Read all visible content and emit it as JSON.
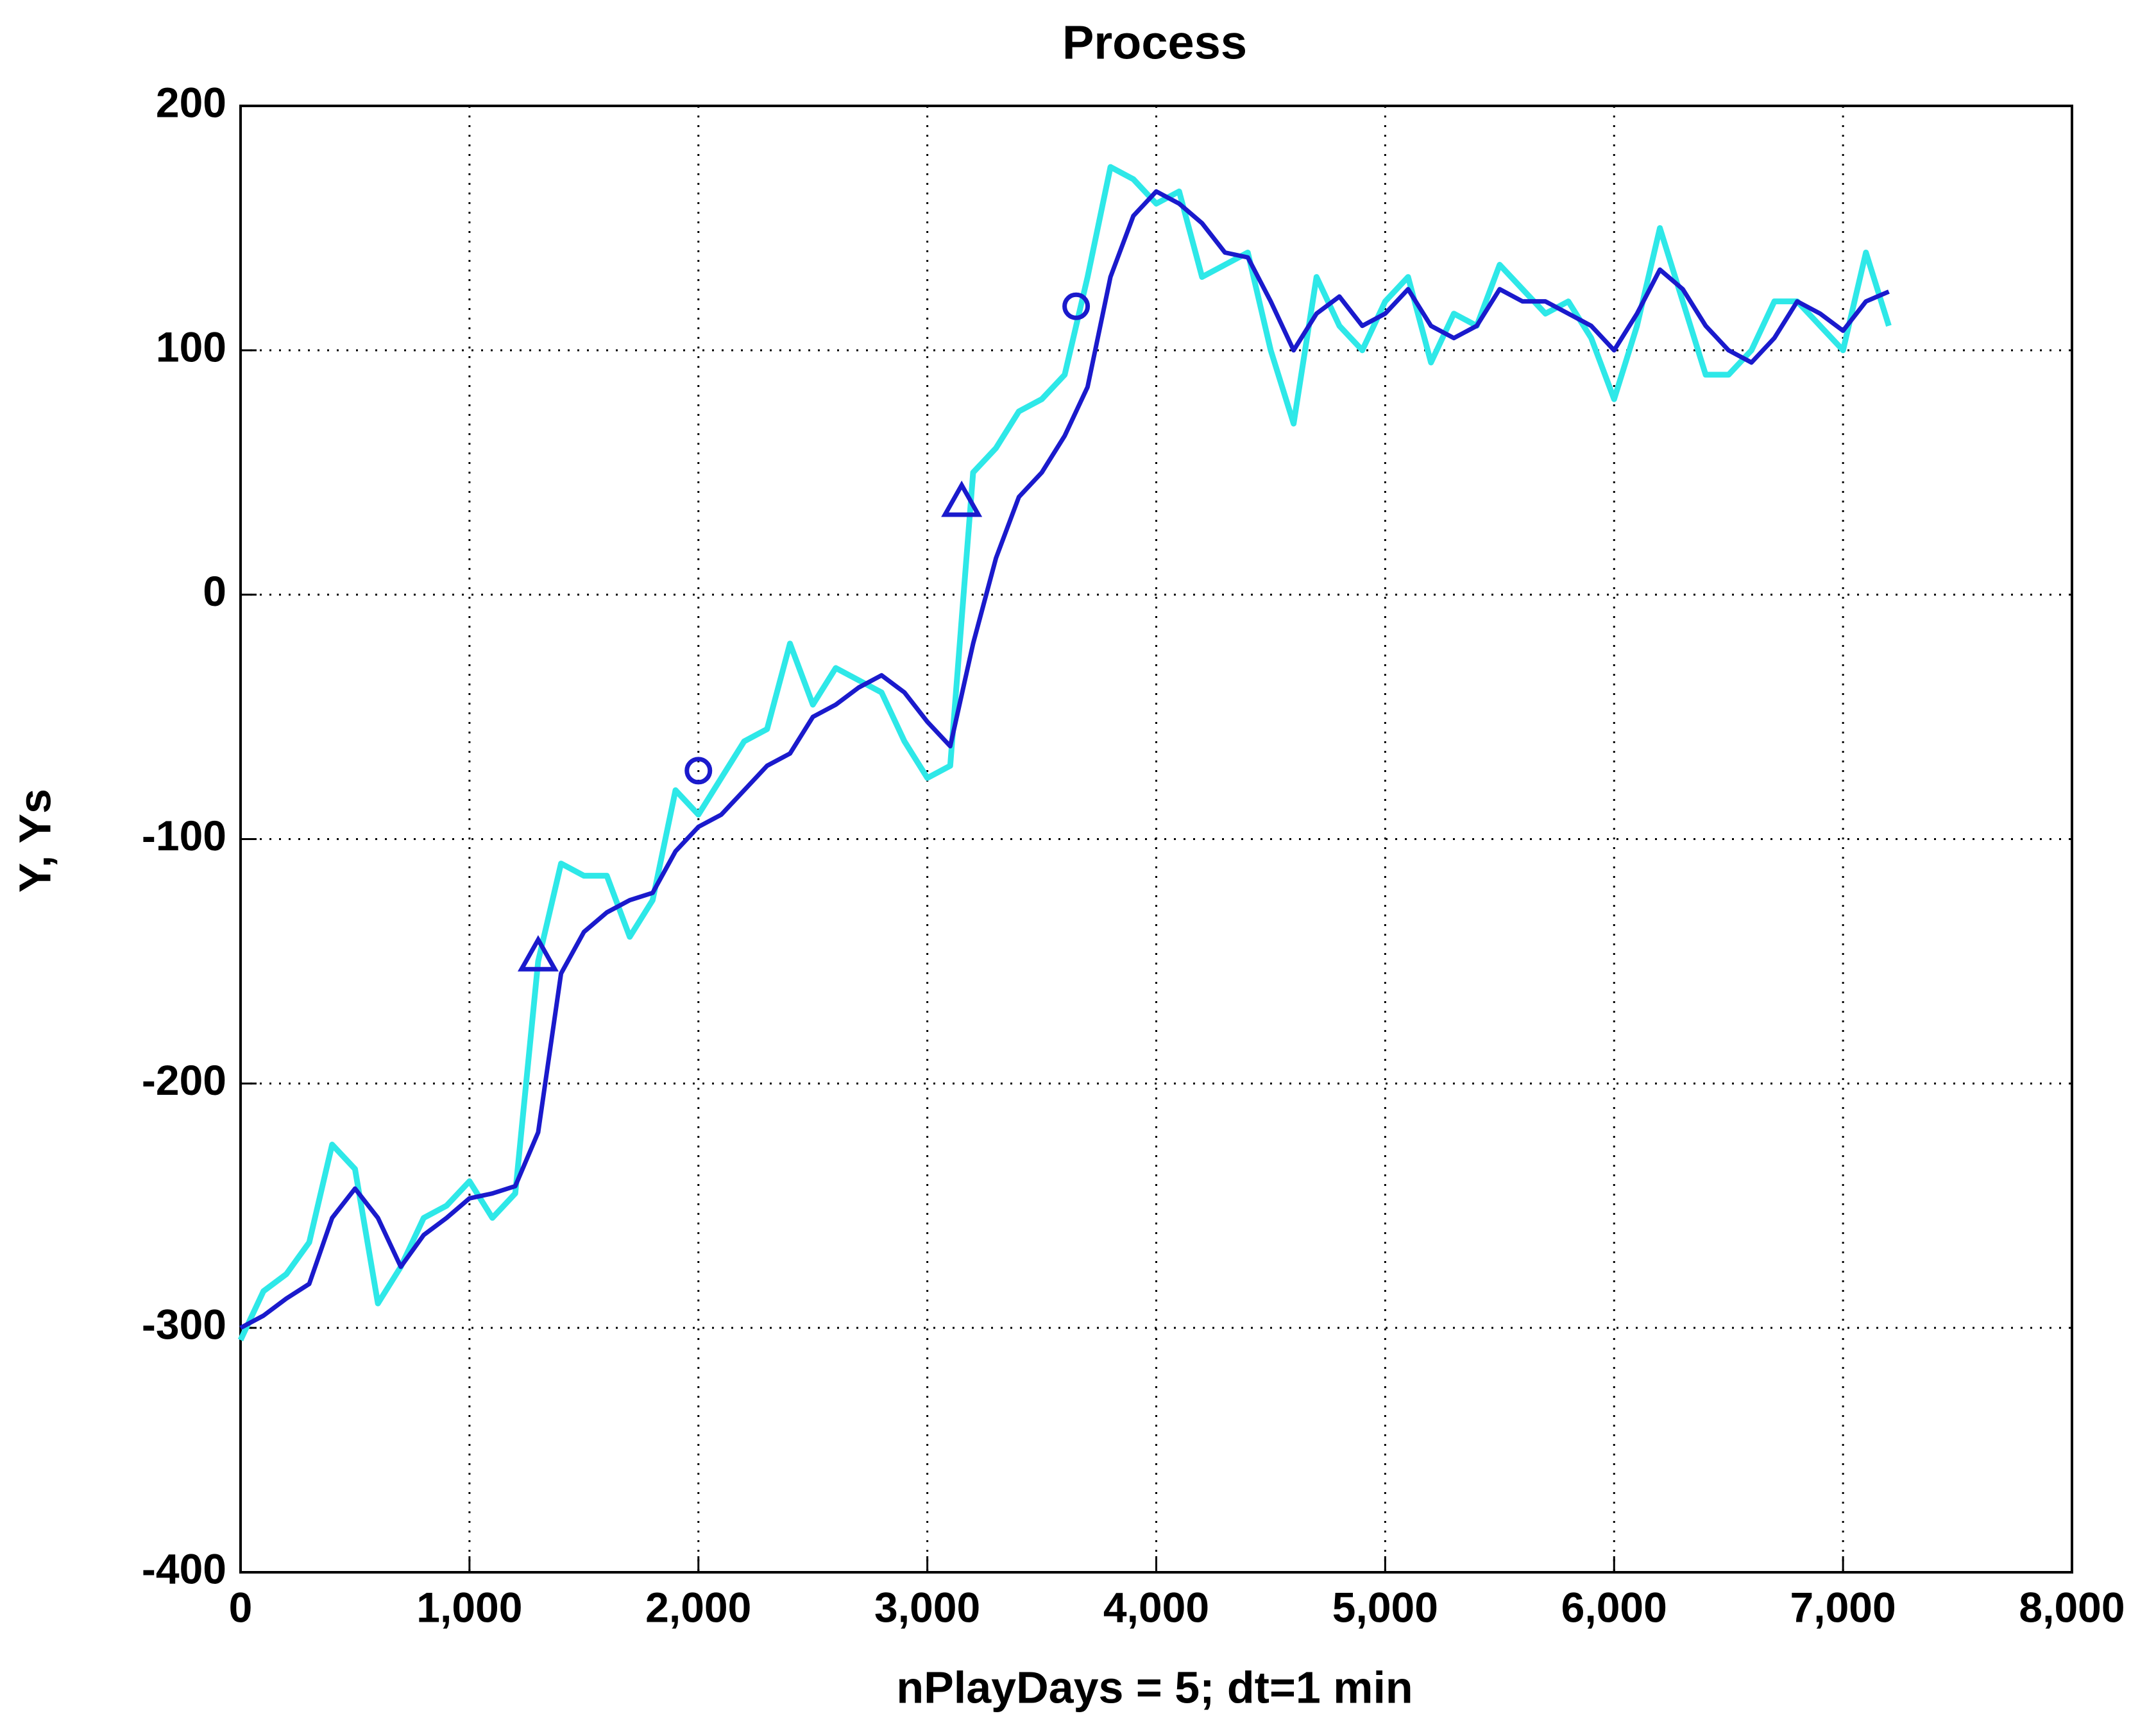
{
  "chart_data": {
    "type": "line",
    "title": "Process",
    "x_label": "nPlayDays = 5;    dt=1 min",
    "y_label": "Y,  Ys",
    "xlim": [
      0,
      8000
    ],
    "xticks": [
      0,
      {
        "value": 1000,
        "label": "1,000"
      },
      {
        "value": 2000,
        "label": "2,000"
      },
      {
        "value": 3000,
        "label": "3,000"
      },
      {
        "value": 4000,
        "label": "4,000"
      },
      {
        "value": 5000,
        "label": "5,000"
      },
      {
        "value": 6000,
        "label": "6,000"
      },
      {
        "value": 7000,
        "label": "7,000"
      },
      {
        "value": 8000,
        "label": "8,000"
      }
    ],
    "ylim": [
      -400,
      200
    ],
    "yticks": [
      -400,
      -300,
      -200,
      -100,
      0,
      100,
      200
    ],
    "grid": true,
    "series": [
      {
        "color": "#2ee8e8",
        "marker": "none",
        "x": [
          0,
          100,
          200,
          300,
          400,
          500,
          600,
          700,
          800,
          900,
          1000,
          1100,
          1200,
          1300,
          1400,
          1500,
          1600,
          1700,
          1800,
          1900,
          2000,
          2100,
          2200,
          2300,
          2400,
          2500,
          2600,
          2700,
          2800,
          2900,
          3000,
          3100,
          3200,
          3300,
          3400,
          3500,
          3600,
          3700,
          3800,
          3900,
          4000,
          4100,
          4200,
          4300,
          4400,
          4500,
          4600,
          4700,
          4800,
          4900,
          5000,
          5100,
          5200,
          5300,
          5400,
          5500,
          5600,
          5700,
          5800,
          5900,
          6000,
          6100,
          6200,
          6300,
          6400,
          6500,
          6600,
          6700,
          6800,
          6900,
          7000,
          7100,
          7200
        ],
        "values": [
          -305,
          -285,
          -278,
          -265,
          -225,
          -235,
          -290,
          -275,
          -255,
          -250,
          -240,
          -255,
          -245,
          -150,
          -110,
          -115,
          -115,
          -140,
          -125,
          -80,
          -90,
          -75,
          -60,
          -55,
          -20,
          -45,
          -30,
          -35,
          -40,
          -60,
          -75,
          -70,
          50,
          60,
          75,
          80,
          90,
          130,
          175,
          170,
          160,
          165,
          130,
          135,
          140,
          100,
          70,
          130,
          110,
          100,
          120,
          130,
          95,
          115,
          110,
          135,
          125,
          115,
          120,
          105,
          80,
          110,
          150,
          120,
          90,
          90,
          100,
          120,
          120,
          110,
          100,
          140,
          110
        ]
      },
      {
        "color": "#1a1acc",
        "marker": "none",
        "x": [
          0,
          100,
          200,
          300,
          400,
          500,
          600,
          700,
          800,
          900,
          1000,
          1100,
          1200,
          1300,
          1400,
          1500,
          1600,
          1700,
          1800,
          1900,
          2000,
          2100,
          2200,
          2300,
          2400,
          2500,
          2600,
          2700,
          2800,
          2900,
          3000,
          3100,
          3200,
          3300,
          3400,
          3500,
          3600,
          3700,
          3800,
          3900,
          4000,
          4100,
          4200,
          4300,
          4400,
          4500,
          4600,
          4700,
          4800,
          4900,
          5000,
          5100,
          5200,
          5300,
          5400,
          5500,
          5600,
          5700,
          5800,
          5900,
          6000,
          6100,
          6200,
          6300,
          6400,
          6500,
          6600,
          6700,
          6800,
          6900,
          7000,
          7100,
          7200
        ],
        "values": [
          -300,
          -295,
          -288,
          -282,
          -255,
          -243,
          -255,
          -275,
          -262,
          -255,
          -247,
          -245,
          -242,
          -220,
          -155,
          -138,
          -130,
          -125,
          -122,
          -105,
          -95,
          -90,
          -80,
          -70,
          -65,
          -50,
          -45,
          -38,
          -33,
          -40,
          -52,
          -62,
          -20,
          15,
          40,
          50,
          65,
          85,
          130,
          155,
          165,
          160,
          152,
          140,
          138,
          120,
          100,
          115,
          122,
          110,
          115,
          125,
          110,
          105,
          110,
          125,
          120,
          120,
          115,
          110,
          100,
          115,
          133,
          125,
          110,
          100,
          95,
          105,
          120,
          115,
          108,
          120,
          124
        ]
      },
      {
        "color": "#1a1acc",
        "marker": "triangle",
        "x": [
          1300,
          3150
        ],
        "values": [
          -148,
          38
        ]
      },
      {
        "color": "#1a1acc",
        "marker": "circle",
        "x": [
          2000,
          3650
        ],
        "values": [
          -72,
          118
        ]
      }
    ]
  }
}
